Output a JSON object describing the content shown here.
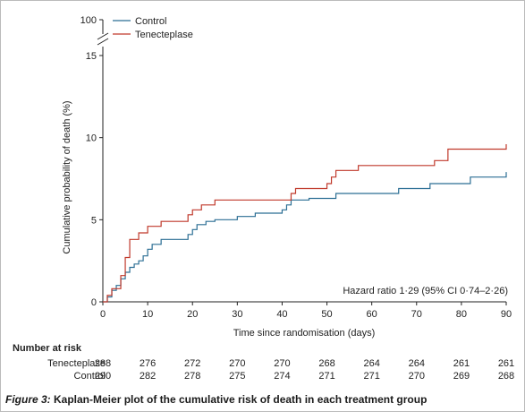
{
  "chart_data": {
    "type": "line",
    "subtype": "kaplan-meier-step",
    "title": "",
    "xlabel": "Time since randomisation (days)",
    "ylabel": "Cumulative probability of death (%)",
    "xlim": [
      0,
      90
    ],
    "ylim": [
      0,
      15
    ],
    "y_axis_break": true,
    "y_break_top_label": "100",
    "x_ticks": [
      0,
      10,
      20,
      30,
      40,
      50,
      60,
      70,
      80,
      90
    ],
    "y_ticks": [
      0,
      5,
      10,
      15
    ],
    "grid": false,
    "legend_position": "top-left",
    "series": [
      {
        "name": "Control",
        "color": "#2b6e94",
        "x": [
          0,
          1,
          2,
          3,
          4,
          5,
          6,
          7,
          8,
          9,
          10,
          11,
          13,
          19,
          20,
          21,
          23,
          25,
          30,
          34,
          40,
          41,
          42,
          46,
          52,
          55,
          66,
          73,
          82,
          90
        ],
        "y": [
          0,
          0.3,
          0.7,
          1.0,
          1.4,
          1.8,
          2.1,
          2.3,
          2.5,
          2.8,
          3.2,
          3.5,
          3.8,
          4.1,
          4.4,
          4.7,
          4.9,
          5.0,
          5.2,
          5.4,
          5.6,
          5.9,
          6.2,
          6.3,
          6.6,
          6.6,
          6.9,
          7.2,
          7.6,
          7.9
        ]
      },
      {
        "name": "Tenecteplase",
        "color": "#c0392b",
        "x": [
          0,
          1,
          2,
          4,
          5,
          6,
          8,
          10,
          13,
          19,
          20,
          22,
          25,
          42,
          43,
          50,
          51,
          52,
          57,
          74,
          77,
          90
        ],
        "y": [
          0,
          0.4,
          0.8,
          1.6,
          2.7,
          3.8,
          4.2,
          4.6,
          4.9,
          5.3,
          5.6,
          5.9,
          6.2,
          6.6,
          6.9,
          7.2,
          7.6,
          8.0,
          8.3,
          8.6,
          9.3,
          9.6
        ]
      }
    ],
    "annotations": [
      "Hazard ratio 1·29 (95% CI 0·74–2·26)"
    ]
  },
  "risk_table": {
    "header": "Number at risk",
    "times": [
      0,
      10,
      20,
      30,
      40,
      50,
      60,
      70,
      80,
      90
    ],
    "rows": [
      {
        "label": "Tenecteplase",
        "values": [
          "288",
          "276",
          "272",
          "270",
          "270",
          "268",
          "264",
          "264",
          "261",
          "261"
        ]
      },
      {
        "label": "Control",
        "values": [
          "290",
          "282",
          "278",
          "275",
          "274",
          "271",
          "271",
          "270",
          "269",
          "268"
        ]
      }
    ]
  },
  "caption": {
    "label": "Figure 3:",
    "text": " Kaplan-Meier plot of the cumulative risk of death in each treatment group"
  }
}
